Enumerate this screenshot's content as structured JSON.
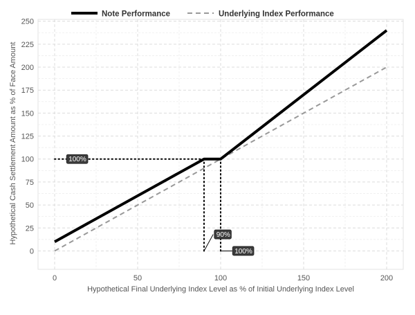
{
  "chart_data": {
    "type": "line",
    "xlabel": "Hypothetical Final Underlying Index Level as % of Initial Underlying Index Level",
    "ylabel": "Hypothetical Cash Settlement Amount as % of Face Amount",
    "xlim": [
      -10,
      210
    ],
    "ylim": [
      -20,
      252
    ],
    "x_ticks": [
      0,
      50,
      100,
      150,
      200
    ],
    "y_ticks": [
      0,
      25,
      50,
      75,
      100,
      125,
      150,
      175,
      200,
      225,
      250
    ],
    "grid": true,
    "legend_position": "top",
    "series": [
      {
        "name": "Note Performance",
        "color": "#000000",
        "style": "solid",
        "points": [
          [
            0,
            10
          ],
          [
            90,
            100
          ],
          [
            100,
            100
          ],
          [
            200,
            240
          ]
        ]
      },
      {
        "name": "Underlying Index Performance",
        "color": "#999999",
        "style": "dashed",
        "points": [
          [
            0,
            0
          ],
          [
            200,
            200
          ]
        ]
      }
    ],
    "reference_lines": [
      {
        "points": [
          [
            0,
            100
          ],
          [
            100,
            100
          ]
        ]
      },
      {
        "points": [
          [
            90,
            0
          ],
          [
            90,
            100
          ]
        ]
      },
      {
        "points": [
          [
            100,
            0
          ],
          [
            100,
            100
          ]
        ]
      }
    ],
    "annotations": [
      {
        "text": "100%",
        "x": 8,
        "y": 100
      },
      {
        "text": "90%",
        "x": 97,
        "y": 18
      },
      {
        "text": "100%",
        "x": 108,
        "y": 0
      }
    ]
  }
}
